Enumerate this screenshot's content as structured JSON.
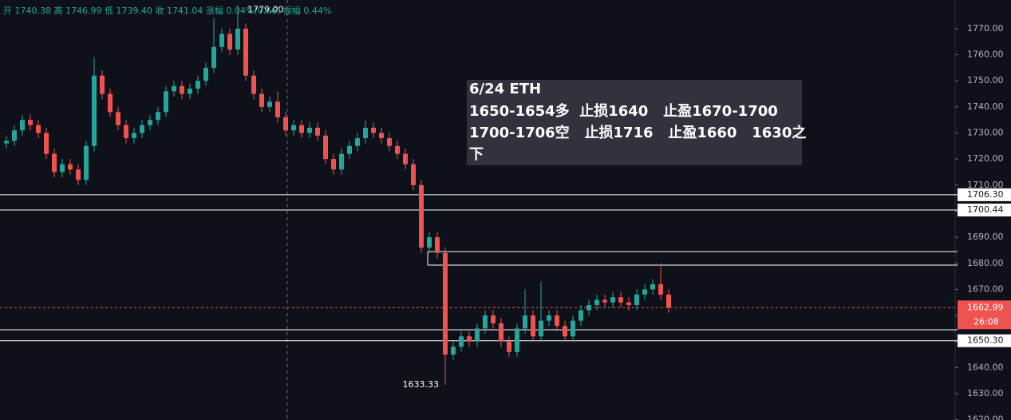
{
  "chart_data": {
    "type": "candlestick",
    "header": "开 1740.38 高 1746.99 低 1739.40 收 1741.04 涨幅 0.04%(0.66) 振幅 0.44%",
    "annotation": [
      "6/24 ETH",
      "1650-1654多  止损1640   止盈1670-1700",
      "1700-1706空   止损1716   止盈1660   1630之",
      "下"
    ],
    "up_color": "#26a69a",
    "down_color": "#ef5350",
    "open": [
      1726,
      1727,
      1731,
      1735,
      1733,
      1730,
      1722,
      1715,
      1718,
      1716,
      1712,
      1725,
      1752,
      1745,
      1738,
      1733,
      1728,
      1730,
      1733,
      1735,
      1738,
      1746,
      1748,
      1745,
      1747,
      1750,
      1755,
      1763,
      1768,
      1762,
      1770,
      1752,
      1745,
      1740,
      1742,
      1736,
      1731,
      1733,
      1730,
      1732,
      1729,
      1720,
      1716,
      1722,
      1725,
      1728,
      1732,
      1730,
      1728,
      1725,
      1722,
      1718,
      1710,
      1686,
      1690,
      1684,
      1645,
      1648,
      1652,
      1650,
      1655,
      1660,
      1657,
      1650,
      1646,
      1655,
      1660,
      1652,
      1658,
      1660,
      1656,
      1652,
      1658,
      1662,
      1664,
      1666,
      1665,
      1667,
      1665,
      1664,
      1668,
      1670,
      1672,
      1668
    ],
    "high": [
      1729,
      1733,
      1737,
      1737,
      1735,
      1732,
      1724,
      1720,
      1720,
      1718,
      1727,
      1759,
      1754,
      1747,
      1740,
      1735,
      1732,
      1735,
      1737,
      1740,
      1748,
      1750,
      1750,
      1749,
      1752,
      1757,
      1774,
      1770,
      1770,
      1779,
      1772,
      1754,
      1747,
      1744,
      1746,
      1738,
      1735,
      1735,
      1734,
      1734,
      1731,
      1722,
      1724,
      1727,
      1730,
      1735,
      1734,
      1732,
      1730,
      1727,
      1724,
      1720,
      1712,
      1692,
      1692,
      1686,
      1650,
      1654,
      1654,
      1657,
      1662,
      1662,
      1659,
      1652,
      1657,
      1670,
      1662,
      1673,
      1662,
      1662,
      1658,
      1660,
      1664,
      1666,
      1668,
      1668,
      1669,
      1669,
      1667,
      1670,
      1672,
      1674,
      1680,
      1670
    ],
    "low": [
      1724,
      1725,
      1729,
      1731,
      1728,
      1720,
      1713,
      1713,
      1714,
      1710,
      1710,
      1723,
      1743,
      1736,
      1731,
      1726,
      1726,
      1728,
      1731,
      1733,
      1736,
      1744,
      1743,
      1743,
      1745,
      1748,
      1753,
      1761,
      1760,
      1760,
      1750,
      1743,
      1738,
      1738,
      1734,
      1729,
      1729,
      1728,
      1728,
      1727,
      1718,
      1714,
      1714,
      1720,
      1723,
      1726,
      1728,
      1726,
      1723,
      1720,
      1716,
      1708,
      1684,
      1684,
      1682,
      1633.33,
      1643,
      1646,
      1648,
      1648,
      1653,
      1655,
      1648,
      1644,
      1644,
      1653,
      1650,
      1650,
      1656,
      1654,
      1650,
      1650,
      1656,
      1660,
      1662,
      1663,
      1663,
      1663,
      1662,
      1662,
      1666,
      1668,
      1666,
      1661
    ],
    "close": [
      1727,
      1731,
      1735,
      1733,
      1730,
      1722,
      1715,
      1718,
      1716,
      1712,
      1725,
      1752,
      1745,
      1738,
      1733,
      1728,
      1730,
      1733,
      1735,
      1738,
      1746,
      1748,
      1745,
      1747,
      1750,
      1755,
      1763,
      1768,
      1762,
      1770,
      1752,
      1745,
      1740,
      1742,
      1736,
      1731,
      1733,
      1730,
      1732,
      1729,
      1720,
      1716,
      1722,
      1725,
      1728,
      1732,
      1730,
      1728,
      1725,
      1722,
      1718,
      1710,
      1686,
      1690,
      1684,
      1645,
      1648,
      1652,
      1650,
      1655,
      1660,
      1657,
      1650,
      1646,
      1655,
      1660,
      1652,
      1658,
      1660,
      1656,
      1652,
      1658,
      1662,
      1664,
      1666,
      1665,
      1667,
      1665,
      1664,
      1668,
      1670,
      1672,
      1668,
      1662.99
    ],
    "high_marker": {
      "index": 29,
      "label": "1779.00"
    },
    "low_marker": {
      "index": 55,
      "label": "1633.33"
    },
    "ylim": [
      1619.9,
      1781.0
    ],
    "yticks": [
      {
        "value": 1620,
        "label": "1620.00"
      },
      {
        "value": 1630,
        "label": "1630.00"
      },
      {
        "value": 1640,
        "label": "1640.00"
      },
      {
        "value": 1650,
        "label": "1650.00"
      },
      {
        "value": 1660,
        "label": "1660.00"
      },
      {
        "value": 1670,
        "label": "1670.00"
      },
      {
        "value": 1680,
        "label": "1680.00"
      },
      {
        "value": 1690,
        "label": "1690.00"
      },
      {
        "value": 1700,
        "label": "1700.00"
      },
      {
        "value": 1710,
        "label": "1710.00"
      },
      {
        "value": 1720,
        "label": "1720.00"
      },
      {
        "value": 1730,
        "label": "1730.00"
      },
      {
        "value": 1740,
        "label": "1740.00"
      },
      {
        "value": 1750,
        "label": "1750.00"
      },
      {
        "value": 1760,
        "label": "1760.00"
      },
      {
        "value": 1770,
        "label": "1770.00"
      }
    ],
    "levels": [
      {
        "value": 1706.3,
        "label": "1706.30"
      },
      {
        "value": 1700.44,
        "label": "1700.44"
      },
      {
        "value": 1650.3,
        "label": "1650.30"
      }
    ],
    "zone_lines": [
      1684.5,
      1679.3,
      1654.5
    ],
    "last_price": {
      "value": 1662.99,
      "label": "1662.99"
    },
    "countdown": "26:08"
  }
}
